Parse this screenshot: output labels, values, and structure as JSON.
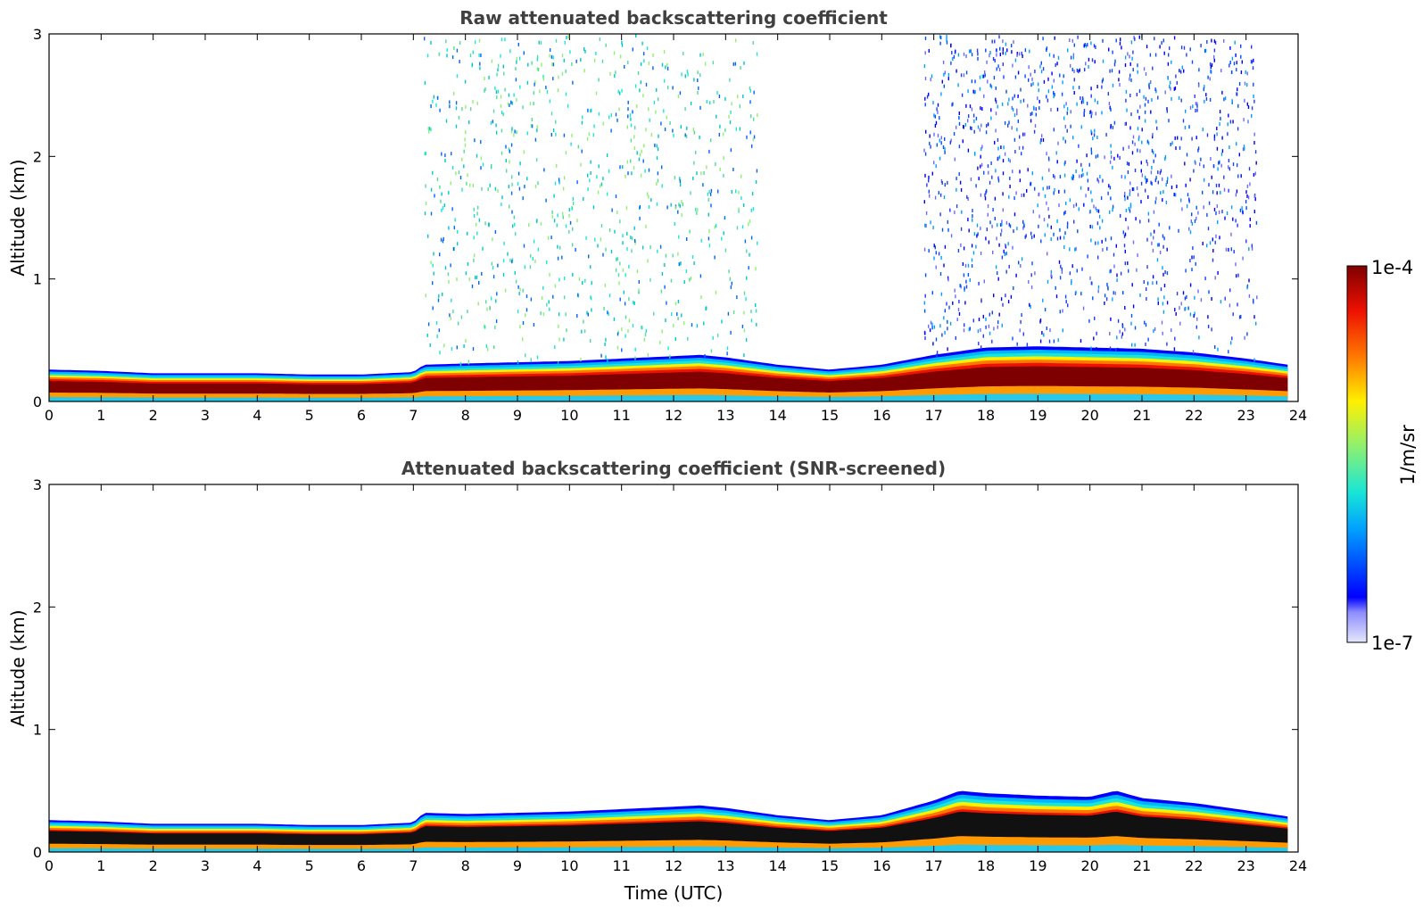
{
  "chart_data": [
    {
      "type": "heatmap",
      "title": "Raw attenuated backscattering coefficient",
      "xlabel": "",
      "ylabel": "Altitude (km)",
      "xlim": [
        0,
        24
      ],
      "ylim": [
        0,
        3
      ],
      "x_ticks": [
        "0",
        "1",
        "2",
        "3",
        "4",
        "5",
        "6",
        "7",
        "8",
        "9",
        "10",
        "11",
        "12",
        "13",
        "14",
        "15",
        "16",
        "17",
        "18",
        "19",
        "20",
        "21",
        "22",
        "23",
        "24"
      ],
      "y_ticks": [
        "0",
        "1",
        "2",
        "3"
      ],
      "data_end_hour": 23.8,
      "boundary_layer_top_km": {
        "hours": [
          0,
          1,
          2,
          3,
          4,
          5,
          6,
          7,
          7.2,
          8,
          9,
          10,
          11,
          12,
          12.5,
          13,
          14,
          15,
          16,
          17,
          18,
          19,
          20,
          21,
          22,
          23,
          23.8
        ],
        "values": [
          0.26,
          0.25,
          0.23,
          0.23,
          0.23,
          0.22,
          0.22,
          0.24,
          0.3,
          0.31,
          0.32,
          0.33,
          0.35,
          0.37,
          0.38,
          0.36,
          0.3,
          0.26,
          0.3,
          0.38,
          0.44,
          0.45,
          0.44,
          0.43,
          0.4,
          0.35,
          0.3
        ]
      },
      "noise_regions": [
        {
          "from_hour": 7.2,
          "to_hour": 13.6,
          "style": "green-blue speckle"
        },
        {
          "from_hour": 16.8,
          "to_hour": 23.2,
          "style": "blue speckle"
        }
      ]
    },
    {
      "type": "heatmap",
      "title": "Attenuated backscattering coefficient (SNR-screened)",
      "xlabel": "Time (UTC)",
      "ylabel": "Altitude (km)",
      "xlim": [
        0,
        24
      ],
      "ylim": [
        0,
        3
      ],
      "x_ticks": [
        "0",
        "1",
        "2",
        "3",
        "4",
        "5",
        "6",
        "7",
        "8",
        "9",
        "10",
        "11",
        "12",
        "13",
        "14",
        "15",
        "16",
        "17",
        "18",
        "19",
        "20",
        "21",
        "22",
        "23",
        "24"
      ],
      "y_ticks": [
        "0",
        "1",
        "2",
        "3"
      ],
      "data_end_hour": 23.8,
      "boundary_layer_top_km": {
        "hours": [
          0,
          1,
          2,
          3,
          4,
          5,
          6,
          7,
          7.2,
          8,
          9,
          10,
          11,
          12,
          12.5,
          13,
          14,
          15,
          16,
          17,
          17.5,
          18,
          19,
          20,
          20.5,
          21,
          22,
          23,
          23.8
        ],
        "values": [
          0.26,
          0.25,
          0.23,
          0.23,
          0.23,
          0.22,
          0.22,
          0.24,
          0.32,
          0.31,
          0.32,
          0.33,
          0.35,
          0.37,
          0.38,
          0.36,
          0.3,
          0.26,
          0.3,
          0.42,
          0.5,
          0.48,
          0.46,
          0.45,
          0.5,
          0.44,
          0.4,
          0.34,
          0.29
        ]
      }
    }
  ],
  "colorbar": {
    "label": "1/m/sr",
    "max_label": "1e-4",
    "min_label": "1e-7",
    "scale": "log",
    "range": [
      1e-07,
      0.0001
    ],
    "colormap": "jet",
    "colors": [
      "#e6e8fb",
      "#0000ff",
      "#00a0ff",
      "#19e6d6",
      "#8ef070",
      "#fff000",
      "#ff7800",
      "#ee1100",
      "#7f0000"
    ]
  }
}
